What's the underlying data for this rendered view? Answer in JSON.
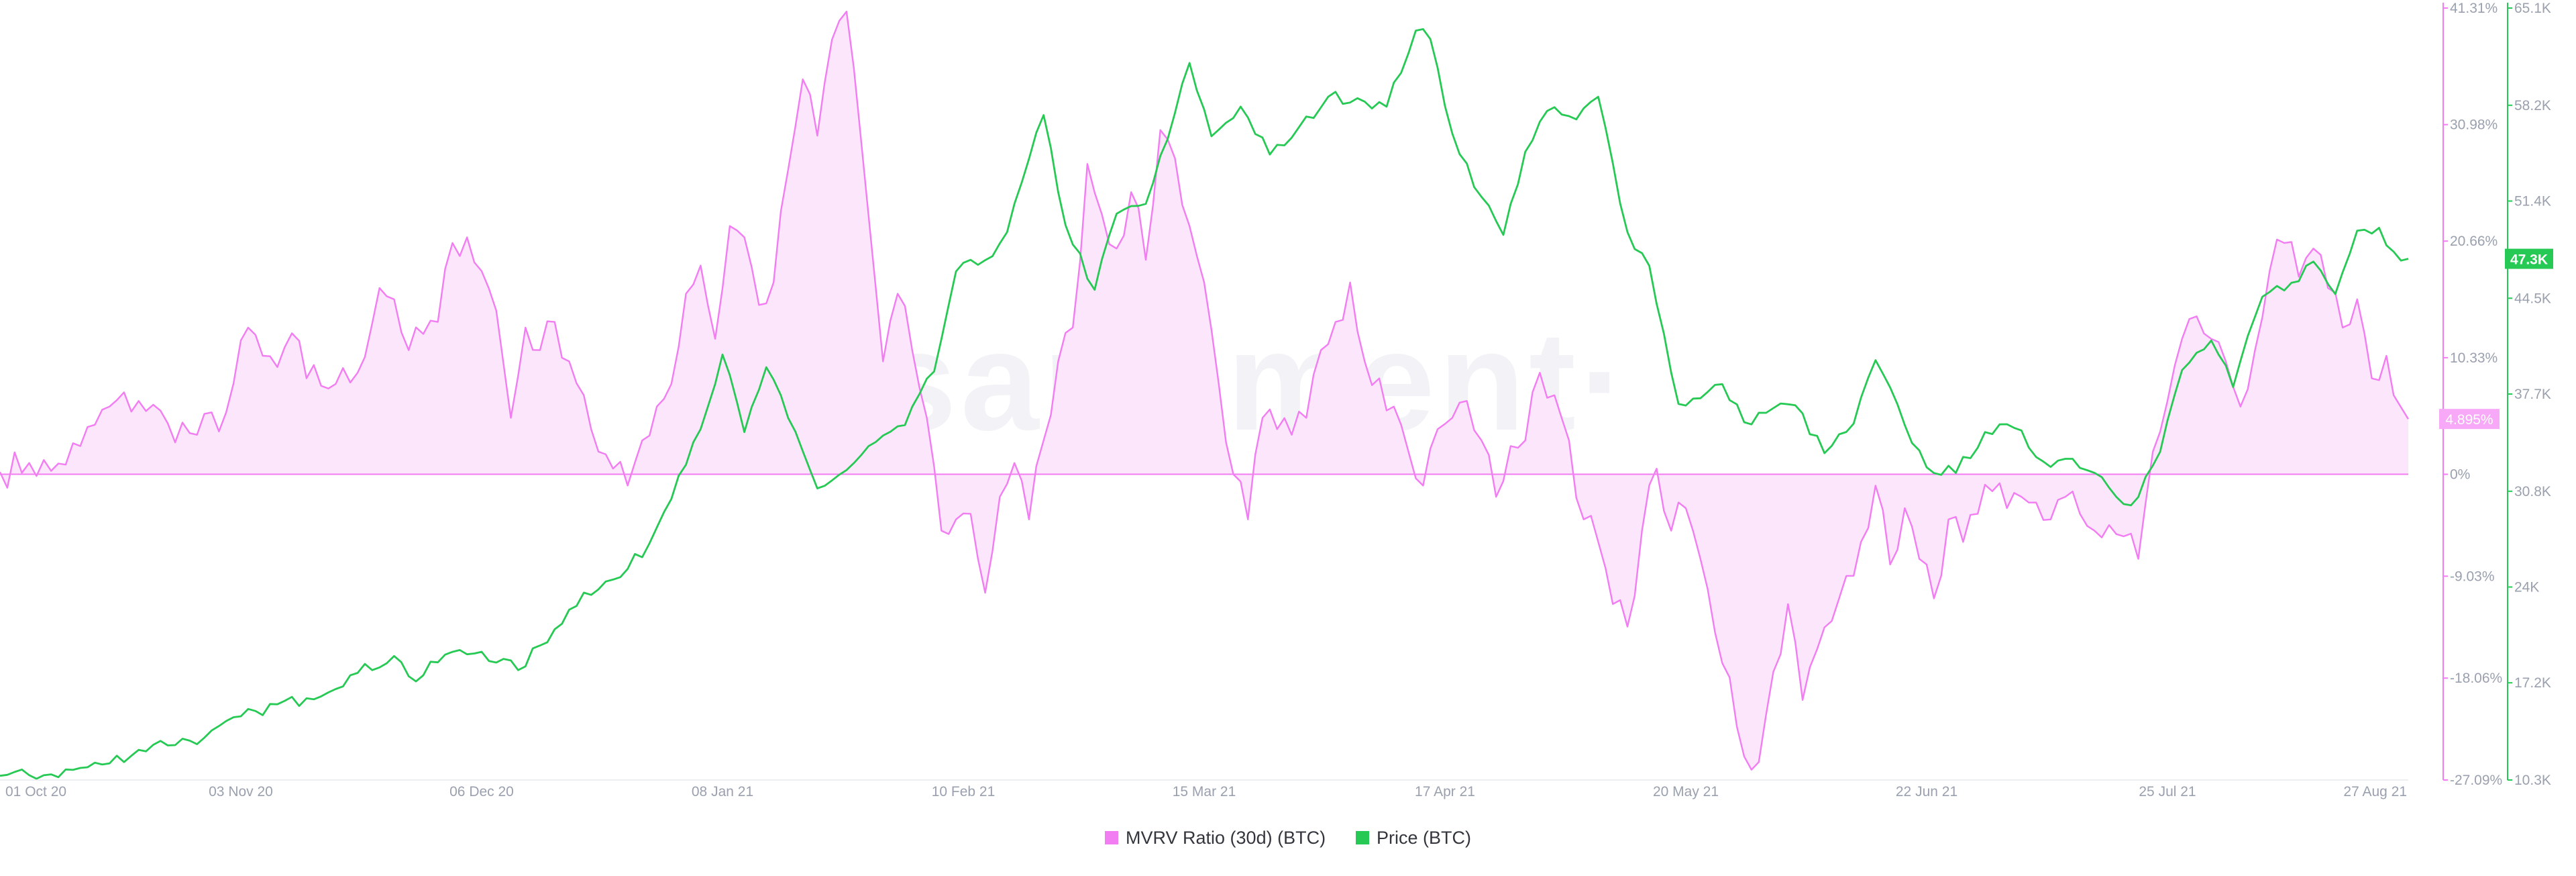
{
  "watermark": "santiment·",
  "chart_data": {
    "type": "line",
    "legend": {
      "position": "bottom-center"
    },
    "grid": false,
    "x": {
      "start": "2020-10-01",
      "end": "2021-08-27",
      "ticks": [
        {
          "label": "01 Oct 20",
          "date": "2020-10-01"
        },
        {
          "label": "03 Nov 20",
          "date": "2020-11-03"
        },
        {
          "label": "06 Dec 20",
          "date": "2020-12-06"
        },
        {
          "label": "08 Jan 21",
          "date": "2021-01-08"
        },
        {
          "label": "10 Feb 21",
          "date": "2021-02-10"
        },
        {
          "label": "15 Mar 21",
          "date": "2021-03-15"
        },
        {
          "label": "17 Apr 21",
          "date": "2021-04-17"
        },
        {
          "label": "20 May 21",
          "date": "2021-05-20"
        },
        {
          "label": "22 Jun 21",
          "date": "2021-06-22"
        },
        {
          "label": "25 Jul 21",
          "date": "2021-07-25"
        },
        {
          "label": "27 Aug 21",
          "date": "2021-08-27"
        }
      ]
    },
    "axes": {
      "mvrv": {
        "range": [
          -27.09,
          41.31
        ],
        "color": "#f27cf2",
        "ticks": [
          {
            "label": "41.31%",
            "value": 41.31
          },
          {
            "label": "30.98%",
            "value": 30.98
          },
          {
            "label": "20.66%",
            "value": 20.66
          },
          {
            "label": "10.33%",
            "value": 10.33
          },
          {
            "label": "0%",
            "value": 0
          },
          {
            "label": "-9.03%",
            "value": -9.03
          },
          {
            "label": "-18.06%",
            "value": -18.06
          },
          {
            "label": "-27.09%",
            "value": -27.09
          }
        ],
        "current": "4.895%"
      },
      "price": {
        "range": [
          10300,
          65100
        ],
        "color": "#26c953",
        "ticks": [
          {
            "label": "65.1K",
            "value": 65100
          },
          {
            "label": "58.2K",
            "value": 58200
          },
          {
            "label": "51.4K",
            "value": 51400
          },
          {
            "label": "44.5K",
            "value": 44500
          },
          {
            "label": "37.7K",
            "value": 37700
          },
          {
            "label": "30.8K",
            "value": 30800
          },
          {
            "label": "24K",
            "value": 24000
          },
          {
            "label": "17.2K",
            "value": 17200
          },
          {
            "label": "10.3K",
            "value": 10300
          }
        ],
        "current": "47.3K"
      }
    },
    "series": [
      {
        "name": "MVRV Ratio (30d) (BTC)",
        "axis": "mvrv",
        "color": "#f27cf2",
        "points": [
          [
            "2020-10-01",
            0.2
          ],
          [
            "2020-10-05",
            1.0
          ],
          [
            "2020-10-08",
            0.3
          ],
          [
            "2020-10-12",
            2.5
          ],
          [
            "2020-10-16",
            6.0
          ],
          [
            "2020-10-20",
            6.5
          ],
          [
            "2020-10-24",
            4.5
          ],
          [
            "2020-10-28",
            3.5
          ],
          [
            "2020-11-01",
            5.5
          ],
          [
            "2020-11-04",
            13.0
          ],
          [
            "2020-11-06",
            10.5
          ],
          [
            "2020-11-08",
            9.5
          ],
          [
            "2020-11-10",
            12.5
          ],
          [
            "2020-11-12",
            8.5
          ],
          [
            "2020-11-16",
            8.0
          ],
          [
            "2020-11-19",
            9.0
          ],
          [
            "2020-11-22",
            16.5
          ],
          [
            "2020-11-24",
            15.5
          ],
          [
            "2020-11-26",
            11.0
          ],
          [
            "2020-11-30",
            13.5
          ],
          [
            "2020-12-02",
            20.5
          ],
          [
            "2020-12-04",
            21.0
          ],
          [
            "2020-12-06",
            18.0
          ],
          [
            "2020-12-08",
            14.5
          ],
          [
            "2020-12-10",
            5.0
          ],
          [
            "2020-12-12",
            13.0
          ],
          [
            "2020-12-14",
            11.0
          ],
          [
            "2020-12-16",
            13.5
          ],
          [
            "2020-12-18",
            10.0
          ],
          [
            "2020-12-20",
            7.0
          ],
          [
            "2020-12-22",
            2.0
          ],
          [
            "2020-12-24",
            0.5
          ],
          [
            "2020-12-26",
            -1.0
          ],
          [
            "2020-12-28",
            3.0
          ],
          [
            "2020-12-30",
            6.0
          ],
          [
            "2021-01-01",
            8.0
          ],
          [
            "2021-01-03",
            16.0
          ],
          [
            "2021-01-05",
            18.5
          ],
          [
            "2021-01-07",
            12.0
          ],
          [
            "2021-01-09",
            22.0
          ],
          [
            "2021-01-11",
            21.0
          ],
          [
            "2021-01-13",
            15.0
          ],
          [
            "2021-01-15",
            17.0
          ],
          [
            "2021-01-17",
            27.0
          ],
          [
            "2021-01-19",
            35.0
          ],
          [
            "2021-01-21",
            30.0
          ],
          [
            "2021-01-23",
            38.5
          ],
          [
            "2021-01-25",
            41.0
          ],
          [
            "2021-01-26",
            36.0
          ],
          [
            "2021-01-28",
            23.0
          ],
          [
            "2021-01-30",
            10.0
          ],
          [
            "2021-02-01",
            16.0
          ],
          [
            "2021-02-03",
            11.0
          ],
          [
            "2021-02-05",
            5.0
          ],
          [
            "2021-02-07",
            -5.0
          ],
          [
            "2021-02-09",
            -4.0
          ],
          [
            "2021-02-11",
            -3.5
          ],
          [
            "2021-02-13",
            -10.5
          ],
          [
            "2021-02-15",
            -2.0
          ],
          [
            "2021-02-17",
            1.0
          ],
          [
            "2021-02-19",
            -4.0
          ],
          [
            "2021-02-21",
            3.0
          ],
          [
            "2021-02-23",
            10.0
          ],
          [
            "2021-02-25",
            13.0
          ],
          [
            "2021-02-27",
            27.5
          ],
          [
            "2021-03-01",
            23.0
          ],
          [
            "2021-03-03",
            20.0
          ],
          [
            "2021-03-05",
            25.0
          ],
          [
            "2021-03-07",
            19.0
          ],
          [
            "2021-03-09",
            30.5
          ],
          [
            "2021-03-11",
            28.0
          ],
          [
            "2021-03-13",
            22.0
          ],
          [
            "2021-03-15",
            17.0
          ],
          [
            "2021-03-17",
            8.0
          ],
          [
            "2021-03-19",
            0.0
          ],
          [
            "2021-03-21",
            -4.0
          ],
          [
            "2021-03-23",
            5.0
          ],
          [
            "2021-03-25",
            4.0
          ],
          [
            "2021-03-27",
            3.5
          ],
          [
            "2021-03-29",
            5.0
          ],
          [
            "2021-03-31",
            11.0
          ],
          [
            "2021-04-02",
            13.5
          ],
          [
            "2021-04-04",
            17.0
          ],
          [
            "2021-04-06",
            10.0
          ],
          [
            "2021-04-08",
            8.5
          ],
          [
            "2021-04-10",
            6.0
          ],
          [
            "2021-04-12",
            2.0
          ],
          [
            "2021-04-14",
            -1.0
          ],
          [
            "2021-04-16",
            4.0
          ],
          [
            "2021-04-18",
            5.0
          ],
          [
            "2021-04-20",
            6.5
          ],
          [
            "2021-04-22",
            3.0
          ],
          [
            "2021-04-24",
            -2.0
          ],
          [
            "2021-04-26",
            2.5
          ],
          [
            "2021-04-28",
            3.0
          ],
          [
            "2021-04-30",
            9.0
          ],
          [
            "2021-05-02",
            7.0
          ],
          [
            "2021-05-04",
            3.0
          ],
          [
            "2021-05-06",
            -4.0
          ],
          [
            "2021-05-08",
            -6.0
          ],
          [
            "2021-05-10",
            -11.5
          ],
          [
            "2021-05-12",
            -13.5
          ],
          [
            "2021-05-14",
            -5.0
          ],
          [
            "2021-05-16",
            0.5
          ],
          [
            "2021-05-18",
            -5.0
          ],
          [
            "2021-05-20",
            -3.0
          ],
          [
            "2021-05-22",
            -7.5
          ],
          [
            "2021-05-24",
            -14.0
          ],
          [
            "2021-05-26",
            -18.0
          ],
          [
            "2021-05-28",
            -25.0
          ],
          [
            "2021-05-30",
            -25.5
          ],
          [
            "2021-06-01",
            -17.5
          ],
          [
            "2021-06-03",
            -11.5
          ],
          [
            "2021-06-05",
            -20.0
          ],
          [
            "2021-06-07",
            -15.5
          ],
          [
            "2021-06-09",
            -13.0
          ],
          [
            "2021-06-11",
            -9.0
          ],
          [
            "2021-06-13",
            -6.0
          ],
          [
            "2021-06-15",
            -1.0
          ],
          [
            "2021-06-17",
            -8.0
          ],
          [
            "2021-06-19",
            -3.0
          ],
          [
            "2021-06-21",
            -7.5
          ],
          [
            "2021-06-23",
            -11.0
          ],
          [
            "2021-06-25",
            -4.0
          ],
          [
            "2021-06-27",
            -6.0
          ],
          [
            "2021-06-29",
            -3.5
          ],
          [
            "2021-07-01",
            -1.5
          ],
          [
            "2021-07-03",
            -3.0
          ],
          [
            "2021-07-05",
            -2.0
          ],
          [
            "2021-07-07",
            -2.5
          ],
          [
            "2021-07-09",
            -4.0
          ],
          [
            "2021-07-11",
            -2.0
          ],
          [
            "2021-07-13",
            -3.5
          ],
          [
            "2021-07-15",
            -5.0
          ],
          [
            "2021-07-17",
            -4.5
          ],
          [
            "2021-07-19",
            -5.5
          ],
          [
            "2021-07-21",
            -7.5
          ],
          [
            "2021-07-23",
            2.0
          ],
          [
            "2021-07-25",
            6.5
          ],
          [
            "2021-07-27",
            12.0
          ],
          [
            "2021-07-29",
            14.0
          ],
          [
            "2021-07-31",
            12.0
          ],
          [
            "2021-08-02",
            10.0
          ],
          [
            "2021-08-04",
            6.0
          ],
          [
            "2021-08-06",
            11.0
          ],
          [
            "2021-08-08",
            18.0
          ],
          [
            "2021-08-10",
            20.5
          ],
          [
            "2021-08-12",
            17.5
          ],
          [
            "2021-08-14",
            20.0
          ],
          [
            "2021-08-16",
            16.5
          ],
          [
            "2021-08-18",
            13.0
          ],
          [
            "2021-08-20",
            15.5
          ],
          [
            "2021-08-22",
            8.5
          ],
          [
            "2021-08-24",
            10.5
          ],
          [
            "2021-08-25",
            7.0
          ],
          [
            "2021-08-27",
            4.9
          ]
        ]
      },
      {
        "name": "Price (BTC)",
        "axis": "price",
        "color": "#26c953",
        "points": [
          [
            "2020-10-01",
            10600
          ],
          [
            "2020-10-08",
            10700
          ],
          [
            "2020-10-15",
            11400
          ],
          [
            "2020-10-22",
            12800
          ],
          [
            "2020-10-29",
            13300
          ],
          [
            "2020-11-05",
            15200
          ],
          [
            "2020-11-12",
            16100
          ],
          [
            "2020-11-19",
            17900
          ],
          [
            "2020-11-24",
            19100
          ],
          [
            "2020-11-27",
            17300
          ],
          [
            "2020-12-01",
            19200
          ],
          [
            "2020-12-06",
            19400
          ],
          [
            "2020-12-11",
            18100
          ],
          [
            "2020-12-16",
            21000
          ],
          [
            "2020-12-20",
            23600
          ],
          [
            "2020-12-25",
            24700
          ],
          [
            "2020-12-29",
            27100
          ],
          [
            "2021-01-02",
            31900
          ],
          [
            "2021-01-06",
            36800
          ],
          [
            "2021-01-08",
            40500
          ],
          [
            "2021-01-11",
            35000
          ],
          [
            "2021-01-14",
            39600
          ],
          [
            "2021-01-17",
            36000
          ],
          [
            "2021-01-21",
            31000
          ],
          [
            "2021-01-25",
            32300
          ],
          [
            "2021-01-29",
            34300
          ],
          [
            "2021-02-02",
            35500
          ],
          [
            "2021-02-06",
            39300
          ],
          [
            "2021-02-09",
            46400
          ],
          [
            "2021-02-13",
            47200
          ],
          [
            "2021-02-16",
            49200
          ],
          [
            "2021-02-21",
            57500
          ],
          [
            "2021-02-24",
            49700
          ],
          [
            "2021-02-28",
            45100
          ],
          [
            "2021-03-03",
            50500
          ],
          [
            "2021-03-07",
            51200
          ],
          [
            "2021-03-10",
            55800
          ],
          [
            "2021-03-13",
            61200
          ],
          [
            "2021-03-16",
            56000
          ],
          [
            "2021-03-20",
            58100
          ],
          [
            "2021-03-24",
            54700
          ],
          [
            "2021-03-27",
            55900
          ],
          [
            "2021-04-01",
            58800
          ],
          [
            "2021-04-05",
            58700
          ],
          [
            "2021-04-09",
            58100
          ],
          [
            "2021-04-13",
            63500
          ],
          [
            "2021-04-15",
            62900
          ],
          [
            "2021-04-18",
            56200
          ],
          [
            "2021-04-22",
            51700
          ],
          [
            "2021-04-25",
            49000
          ],
          [
            "2021-04-28",
            54900
          ],
          [
            "2021-05-01",
            57800
          ],
          [
            "2021-05-05",
            57200
          ],
          [
            "2021-05-08",
            58800
          ],
          [
            "2021-05-12",
            49200
          ],
          [
            "2021-05-15",
            46800
          ],
          [
            "2021-05-19",
            37000
          ],
          [
            "2021-05-22",
            37400
          ],
          [
            "2021-05-25",
            38400
          ],
          [
            "2021-05-28",
            35700
          ],
          [
            "2021-06-01",
            36700
          ],
          [
            "2021-06-04",
            36900
          ],
          [
            "2021-06-08",
            33500
          ],
          [
            "2021-06-12",
            35600
          ],
          [
            "2021-06-15",
            40100
          ],
          [
            "2021-06-19",
            35500
          ],
          [
            "2021-06-22",
            32500
          ],
          [
            "2021-06-26",
            32100
          ],
          [
            "2021-06-30",
            35000
          ],
          [
            "2021-07-04",
            35300
          ],
          [
            "2021-07-08",
            32900
          ],
          [
            "2021-07-12",
            33100
          ],
          [
            "2021-07-16",
            31800
          ],
          [
            "2021-07-20",
            29800
          ],
          [
            "2021-07-24",
            33600
          ],
          [
            "2021-07-27",
            39400
          ],
          [
            "2021-07-31",
            41500
          ],
          [
            "2021-08-03",
            38200
          ],
          [
            "2021-08-07",
            44600
          ],
          [
            "2021-08-11",
            45600
          ],
          [
            "2021-08-14",
            47100
          ],
          [
            "2021-08-17",
            44800
          ],
          [
            "2021-08-20",
            49300
          ],
          [
            "2021-08-23",
            49500
          ],
          [
            "2021-08-25",
            47800
          ],
          [
            "2021-08-27",
            47300
          ]
        ]
      }
    ]
  }
}
